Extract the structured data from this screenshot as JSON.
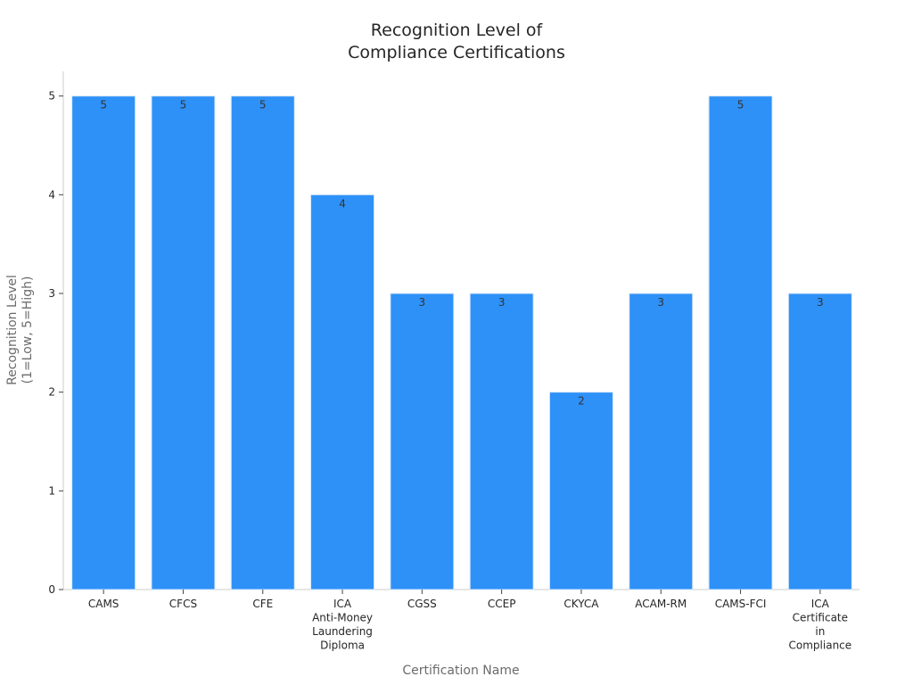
{
  "chart_data": {
    "type": "bar",
    "title": [
      "Recognition Level of",
      "Compliance Certifications"
    ],
    "xlabel": "Certification Name",
    "ylabel": [
      "Recognition Level",
      "(1=Low, 5=High)"
    ],
    "categories": [
      [
        "CAMS"
      ],
      [
        "CFCS"
      ],
      [
        "CFE"
      ],
      [
        "ICA",
        "Anti-Money",
        "Laundering",
        "Diploma"
      ],
      [
        "CGSS"
      ],
      [
        "CCEP"
      ],
      [
        "CKYCA"
      ],
      [
        "ACAM-RM"
      ],
      [
        "CAMS-FCI"
      ],
      [
        "ICA",
        "Certificate",
        "in",
        "Compliance"
      ]
    ],
    "values": [
      5,
      5,
      5,
      4,
      3,
      3,
      2,
      3,
      5,
      3
    ],
    "ylim": [
      0,
      5.25
    ],
    "yticks": [
      0,
      1,
      2,
      3,
      4,
      5
    ],
    "bar_color": "#2e91f8",
    "bar_edge_color": "#d9e8f8",
    "grid": false,
    "legend": "none"
  }
}
